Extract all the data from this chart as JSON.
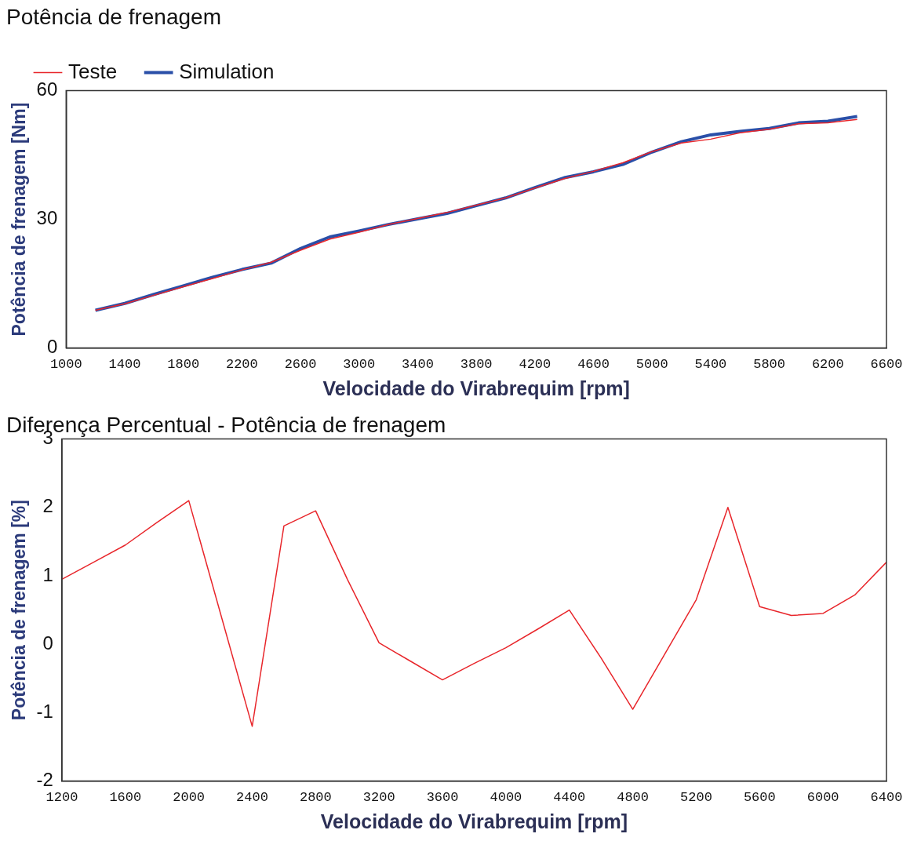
{
  "chart_data": [
    {
      "type": "line",
      "title": "Potência de frenagem",
      "xlabel": "Velocidade do Virabrequim [rpm]",
      "ylabel": "Potência de frenagem [Nm]",
      "legend": "top left",
      "grid": false,
      "marker": "none",
      "line_style": "solid",
      "x": [
        1200,
        1400,
        1600,
        1800,
        2000,
        2200,
        2400,
        2600,
        2800,
        3000,
        3200,
        3400,
        3600,
        3800,
        4000,
        4200,
        4400,
        4600,
        4800,
        5000,
        5200,
        5400,
        5600,
        5800,
        6000,
        6200,
        6400
      ],
      "series": [
        {
          "name": "Teste",
          "color": "#e8262b",
          "values": [
            8.8,
            10.3,
            12.3,
            14.3,
            16.2,
            18.2,
            20.0,
            22.8,
            25.4,
            27.0,
            28.8,
            30.2,
            31.6,
            33.3,
            35.0,
            37.3,
            39.5,
            41.2,
            43.2,
            45.8,
            47.8,
            48.7,
            50.2,
            51.0,
            52.3,
            52.5,
            53.3
          ]
        },
        {
          "name": "Simulation",
          "color": "#2a4fa8",
          "values": [
            8.8,
            10.4,
            12.5,
            14.5,
            16.5,
            18.3,
            19.8,
            23.2,
            25.9,
            27.3,
            28.8,
            30.1,
            31.4,
            33.2,
            35.0,
            37.4,
            39.7,
            41.1,
            42.8,
            45.7,
            48.1,
            49.7,
            50.5,
            51.2,
            52.5,
            52.9,
            54.0
          ]
        }
      ],
      "xlim": [
        1000,
        6600
      ],
      "xticks": [
        1000,
        1400,
        1800,
        2200,
        2600,
        3000,
        3400,
        3800,
        4200,
        4600,
        5000,
        5400,
        5800,
        6200,
        6600
      ],
      "ylim": [
        0,
        60
      ],
      "yticks": [
        0,
        30,
        60
      ]
    },
    {
      "type": "line",
      "title": "Diferença Percentual - Potência de frenagem",
      "xlabel": "Velocidade do Virabrequim [rpm]",
      "ylabel": "Potência de frenagem [%]",
      "grid": false,
      "marker": "none",
      "line_style": "solid",
      "x": [
        1200,
        1400,
        1600,
        1800,
        2000,
        2200,
        2400,
        2600,
        2800,
        3000,
        3200,
        3400,
        3600,
        3800,
        4000,
        4200,
        4400,
        4600,
        4800,
        5000,
        5200,
        5400,
        5600,
        5800,
        6000,
        6200,
        6400
      ],
      "series": [
        {
          "color": "#e8262b",
          "values": [
            0.95,
            1.2,
            1.45,
            1.78,
            2.1,
            0.45,
            -1.2,
            1.73,
            1.95,
            0.95,
            0.02,
            -0.25,
            -0.52,
            -0.28,
            -0.05,
            0.22,
            0.5,
            -0.2,
            -0.95,
            -0.15,
            0.65,
            2.0,
            0.55,
            0.42,
            0.45,
            0.72,
            1.2
          ]
        }
      ],
      "xlim": [
        1200,
        6400
      ],
      "xticks": [
        1200,
        1600,
        2000,
        2400,
        2800,
        3200,
        3600,
        4000,
        4400,
        4800,
        5200,
        5600,
        6000,
        6400
      ],
      "ylim": [
        -2,
        3
      ],
      "yticks": [
        -2,
        -1,
        0,
        1,
        2,
        3
      ]
    }
  ]
}
